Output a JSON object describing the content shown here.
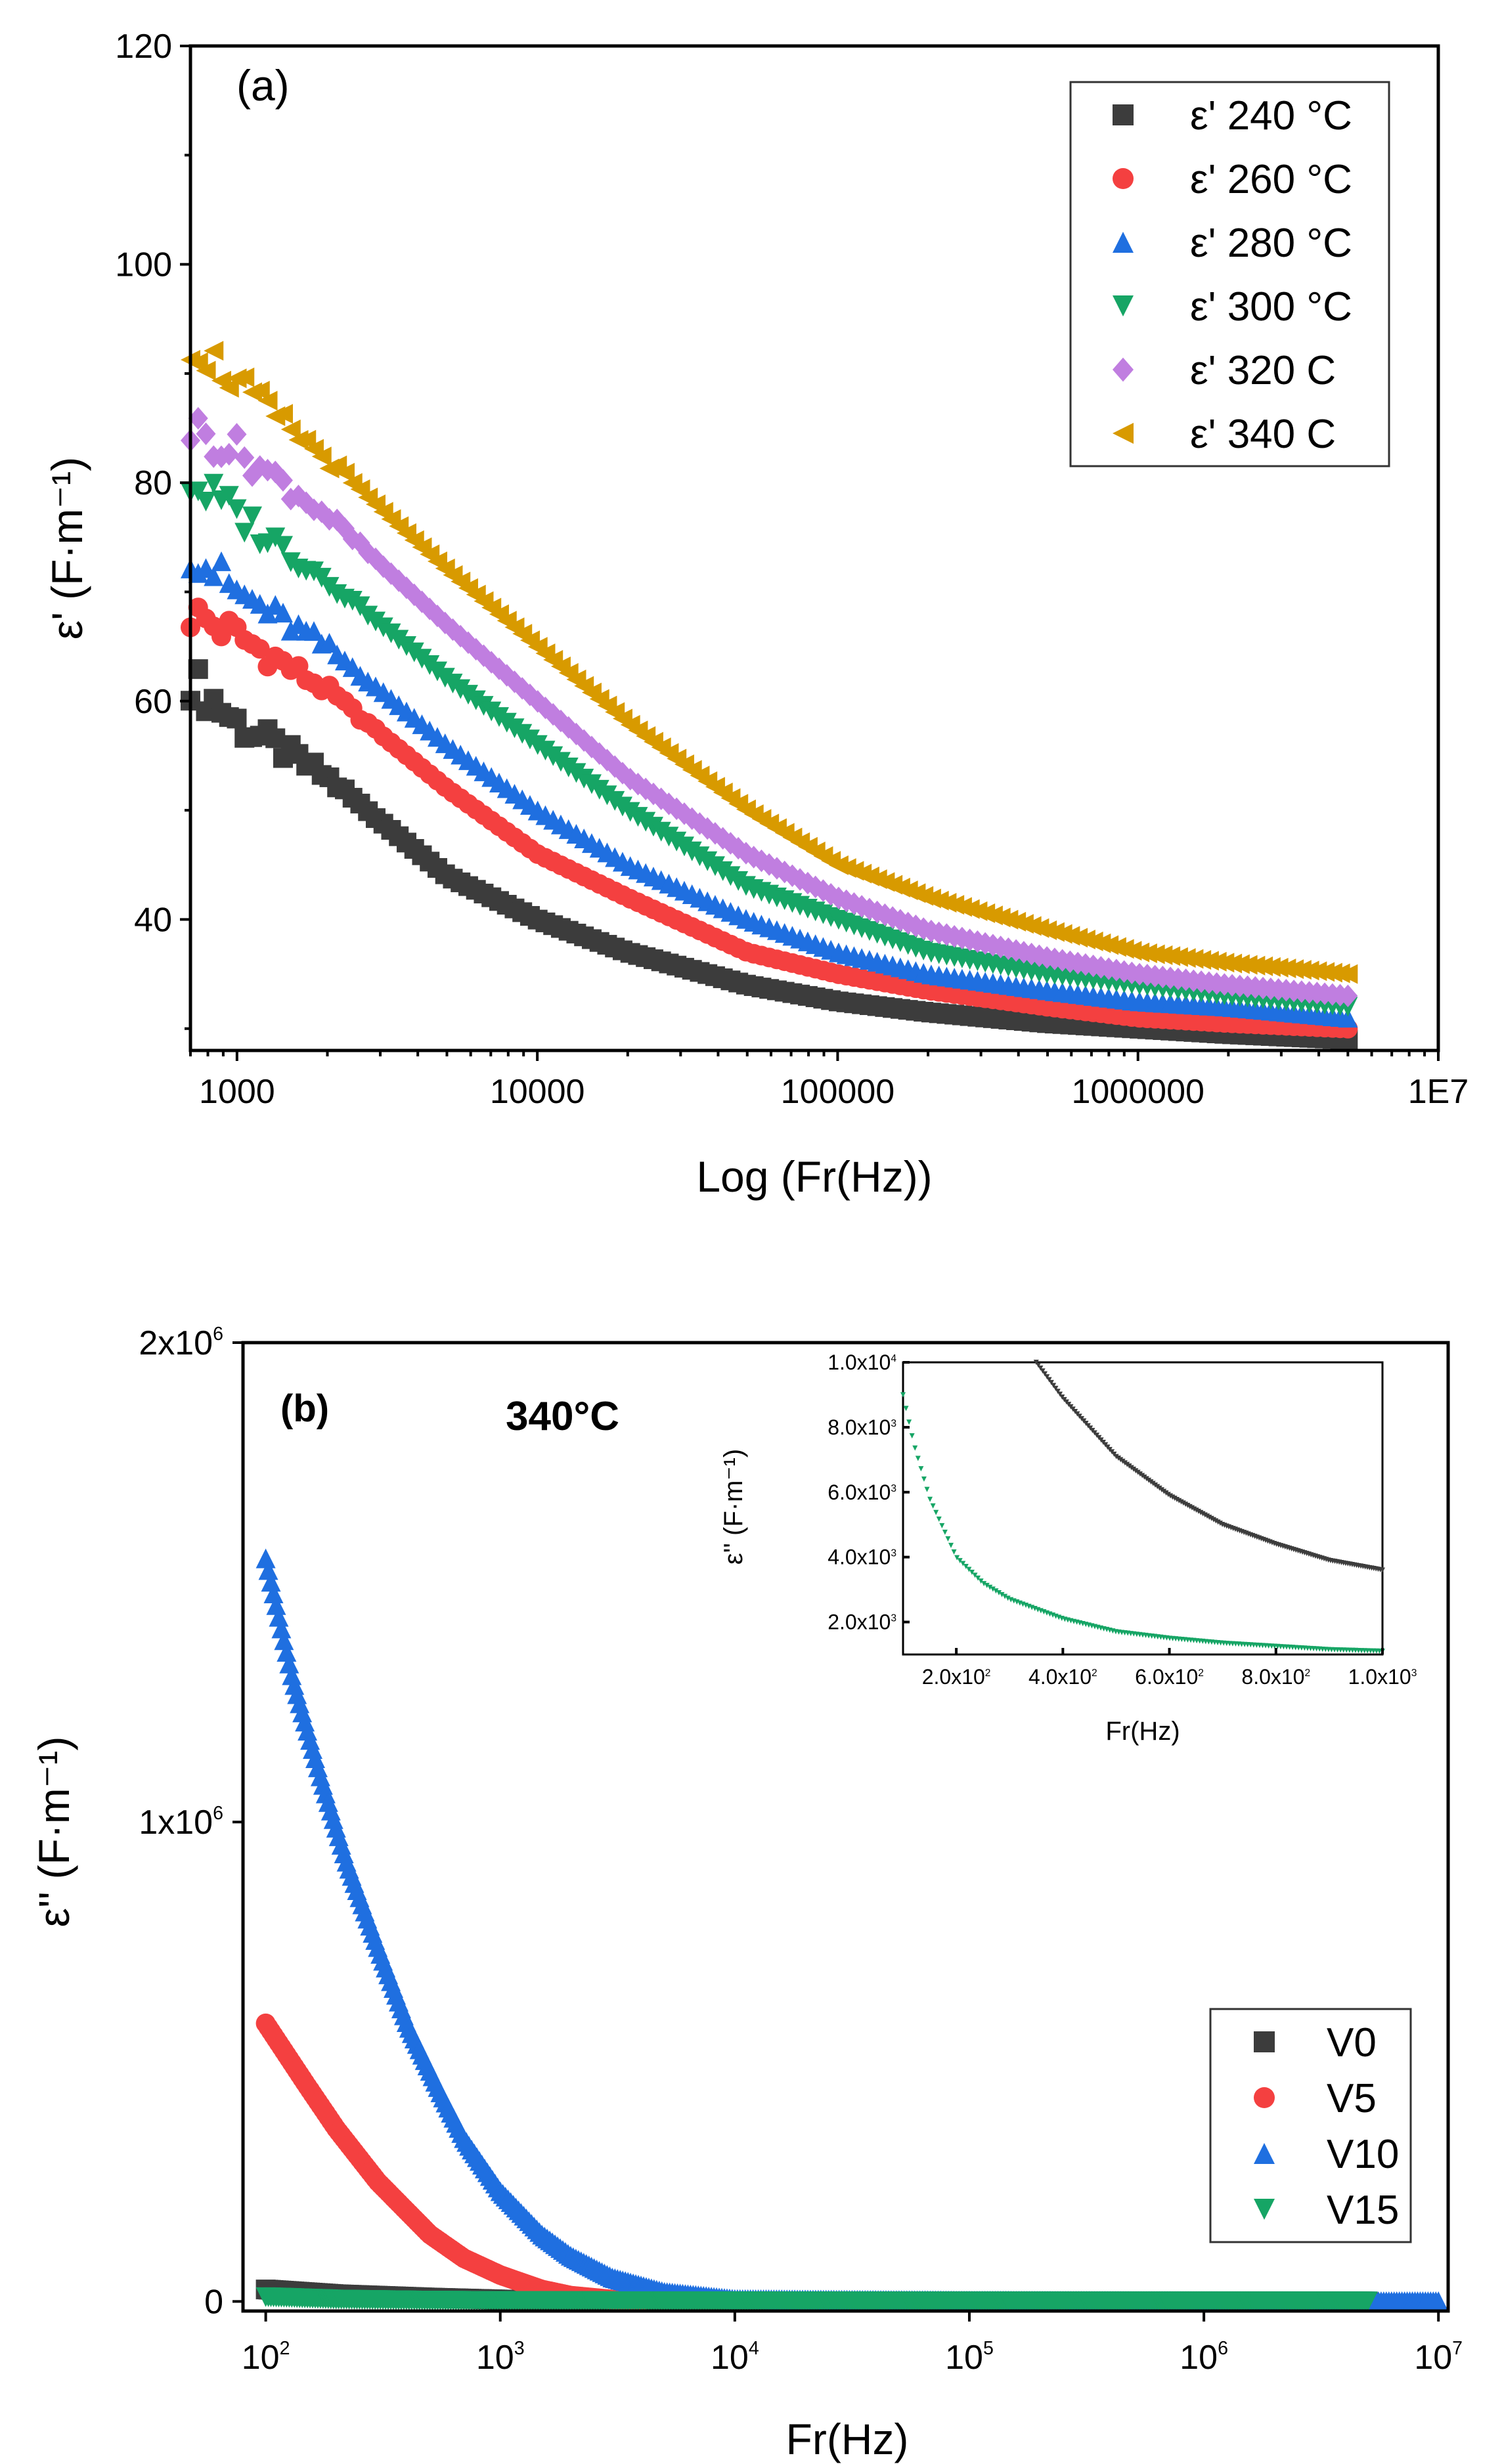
{
  "chart_data": [
    {
      "id": "a",
      "type": "scatter",
      "panel_label": "(a)",
      "xlabel": "Log (Fr(Hz))",
      "ylabel": "ε' (F·m⁻¹)",
      "xscale": "log",
      "xlim": [
        700,
        10000000
      ],
      "ylim": [
        28,
        120
      ],
      "xticks": [
        {
          "v": 1000,
          "t": "1000"
        },
        {
          "v": 10000,
          "t": "10000"
        },
        {
          "v": 100000,
          "t": "100000"
        },
        {
          "v": 1000000,
          "t": "1000000"
        },
        {
          "v": 10000000,
          "t": "1E7"
        }
      ],
      "yticks": [
        {
          "v": 40,
          "t": "40"
        },
        {
          "v": 60,
          "t": "60"
        },
        {
          "v": 80,
          "t": "80"
        },
        {
          "v": 100,
          "t": "100"
        },
        {
          "v": 120,
          "t": "120"
        }
      ],
      "legend_position": "top-right",
      "series": [
        {
          "name": "ε' 240 °C",
          "marker": "square",
          "color": "#3c3c3c",
          "x": [
            700,
            1000,
            2000,
            5000,
            10000,
            20000,
            50000,
            100000,
            200000,
            500000,
            1000000,
            2000000,
            5000000
          ],
          "y": [
            62,
            58,
            53,
            44,
            40,
            37,
            34,
            32.5,
            31.5,
            30.5,
            30,
            29.5,
            29
          ]
        },
        {
          "name": "ε' 260 °C",
          "marker": "circle",
          "color": "#f44040",
          "x": [
            700,
            1000,
            2000,
            5000,
            10000,
            20000,
            50000,
            100000,
            200000,
            500000,
            1000000,
            2000000,
            5000000
          ],
          "y": [
            68,
            66,
            61,
            52,
            46,
            42,
            37,
            35,
            33.5,
            32,
            31,
            30.5,
            30
          ]
        },
        {
          "name": "ε' 280 °C",
          "marker": "triangle-up",
          "color": "#1f6fe0",
          "x": [
            700,
            1000,
            2000,
            5000,
            10000,
            20000,
            50000,
            100000,
            200000,
            500000,
            1000000,
            2000000,
            5000000
          ],
          "y": [
            74,
            70,
            65,
            56,
            50,
            45,
            40,
            37,
            35,
            33.5,
            32.5,
            32,
            31
          ]
        },
        {
          "name": "ε' 300 °C",
          "marker": "triangle-down",
          "color": "#16a565",
          "x": [
            700,
            1000,
            2000,
            5000,
            10000,
            20000,
            50000,
            100000,
            200000,
            500000,
            1000000,
            2000000,
            5000000
          ],
          "y": [
            80,
            77,
            71,
            62,
            56,
            50,
            43,
            40,
            37,
            35,
            34,
            33,
            32
          ]
        },
        {
          "name": "ε' 320 C",
          "marker": "diamond",
          "color": "#c07ee0",
          "x": [
            700,
            1000,
            2000,
            5000,
            10000,
            20000,
            50000,
            100000,
            200000,
            500000,
            1000000,
            2000000,
            5000000
          ],
          "y": [
            85,
            83,
            77,
            67,
            60,
            53,
            46,
            42,
            39,
            36.5,
            35,
            34,
            33
          ]
        },
        {
          "name": "ε' 340 C",
          "marker": "triangle-left",
          "color": "#d89a00",
          "x": [
            700,
            1000,
            2000,
            5000,
            10000,
            20000,
            50000,
            100000,
            200000,
            500000,
            1000000,
            2000000,
            5000000
          ],
          "y": [
            93,
            89,
            82,
            72,
            65,
            58,
            50,
            45,
            42,
            39,
            37,
            36,
            35
          ]
        }
      ]
    },
    {
      "id": "b",
      "type": "scatter",
      "panel_label": "(b)",
      "title": "340°C",
      "xlabel": "Fr(Hz)",
      "ylabel": "ε'' (F·m⁻¹)",
      "xscale": "log",
      "xlim": [
        80,
        11000000
      ],
      "ylim": [
        -20000,
        2000000
      ],
      "xticks": [
        {
          "v": 100,
          "b": "10",
          "e": "2"
        },
        {
          "v": 1000,
          "b": "10",
          "e": "3"
        },
        {
          "v": 10000,
          "b": "10",
          "e": "4"
        },
        {
          "v": 100000,
          "b": "10",
          "e": "5"
        },
        {
          "v": 1000000,
          "b": "10",
          "e": "6"
        },
        {
          "v": 10000000,
          "b": "10",
          "e": "7"
        }
      ],
      "yticks": [
        {
          "v": 0,
          "b": "0",
          "e": ""
        },
        {
          "v": 1000000,
          "b": "1x10",
          "e": "6"
        },
        {
          "v": 2000000,
          "b": "2x10",
          "e": "6"
        }
      ],
      "legend_position": "bottom-right",
      "series": [
        {
          "name": "V0",
          "marker": "square",
          "color": "#3c3c3c",
          "x": [
            100,
            200,
            500,
            1000,
            3000,
            10000,
            100000,
            1000000,
            5000000
          ],
          "y": [
            25000,
            15000,
            8000,
            4000,
            1500,
            500,
            100,
            50,
            30
          ]
        },
        {
          "name": "V5",
          "marker": "circle",
          "color": "#f44040",
          "x": [
            100,
            150,
            200,
            300,
            500,
            700,
            1000,
            1500,
            2000,
            3000,
            4000
          ],
          "y": [
            580000,
            450000,
            360000,
            250000,
            140000,
            90000,
            55000,
            25000,
            12000,
            4000,
            1000
          ]
        },
        {
          "name": "V10",
          "marker": "triangle-up",
          "color": "#1f6fe0",
          "x": [
            100,
            130,
            170,
            220,
            300,
            400,
            550,
            700,
            1000,
            1500,
            2000,
            3000,
            5000,
            10000,
            100000,
            1000000,
            10000000
          ],
          "y": [
            1550000,
            1300000,
            1100000,
            920000,
            740000,
            580000,
            440000,
            340000,
            230000,
            140000,
            95000,
            50000,
            20000,
            5000,
            2000,
            1000,
            500
          ]
        },
        {
          "name": "V15",
          "marker": "triangle-down",
          "color": "#16a565",
          "x": [
            100,
            200,
            500,
            1000,
            10000,
            100000,
            1000000,
            5000000
          ],
          "y": [
            9000,
            4000,
            1600,
            1000,
            200,
            50,
            20,
            10
          ]
        }
      ],
      "inset": {
        "type": "scatter",
        "xlabel": "Fr(Hz)",
        "ylabel": "ε'' (F·m⁻¹)",
        "xlim": [
          100,
          1000
        ],
        "ylim": [
          1000,
          10000
        ],
        "xticks": [
          {
            "v": 200,
            "t": "2.0x10",
            "e": "2"
          },
          {
            "v": 400,
            "t": "4.0x10",
            "e": "2"
          },
          {
            "v": 600,
            "t": "6.0x10",
            "e": "2"
          },
          {
            "v": 800,
            "t": "8.0x10",
            "e": "2"
          },
          {
            "v": 1000,
            "t": "1.0x10",
            "e": "3"
          }
        ],
        "yticks": [
          {
            "v": 2000,
            "t": "2.0x10",
            "e": "3"
          },
          {
            "v": 4000,
            "t": "4.0x10",
            "e": "3"
          },
          {
            "v": 6000,
            "t": "6.0x10",
            "e": "3"
          },
          {
            "v": 8000,
            "t": "8.0x10",
            "e": "3"
          },
          {
            "v": 10000,
            "t": "1.0x10",
            "e": "4"
          }
        ],
        "series": [
          {
            "name": "V0",
            "color": "#3c3c3c",
            "x": [
              350,
              400,
              500,
              600,
              700,
              800,
              900,
              1000
            ],
            "y": [
              10000,
              8900,
              7100,
              5900,
              5000,
              4400,
              3900,
              3600
            ]
          },
          {
            "name": "V15",
            "color": "#16a565",
            "x": [
              100,
              120,
              150,
              200,
              250,
              300,
              400,
              500,
              600,
              700,
              800,
              900,
              1000
            ],
            "y": [
              9000,
              7500,
              5800,
              4000,
              3200,
              2700,
              2100,
              1700,
              1500,
              1350,
              1250,
              1150,
              1100
            ]
          }
        ]
      }
    }
  ]
}
